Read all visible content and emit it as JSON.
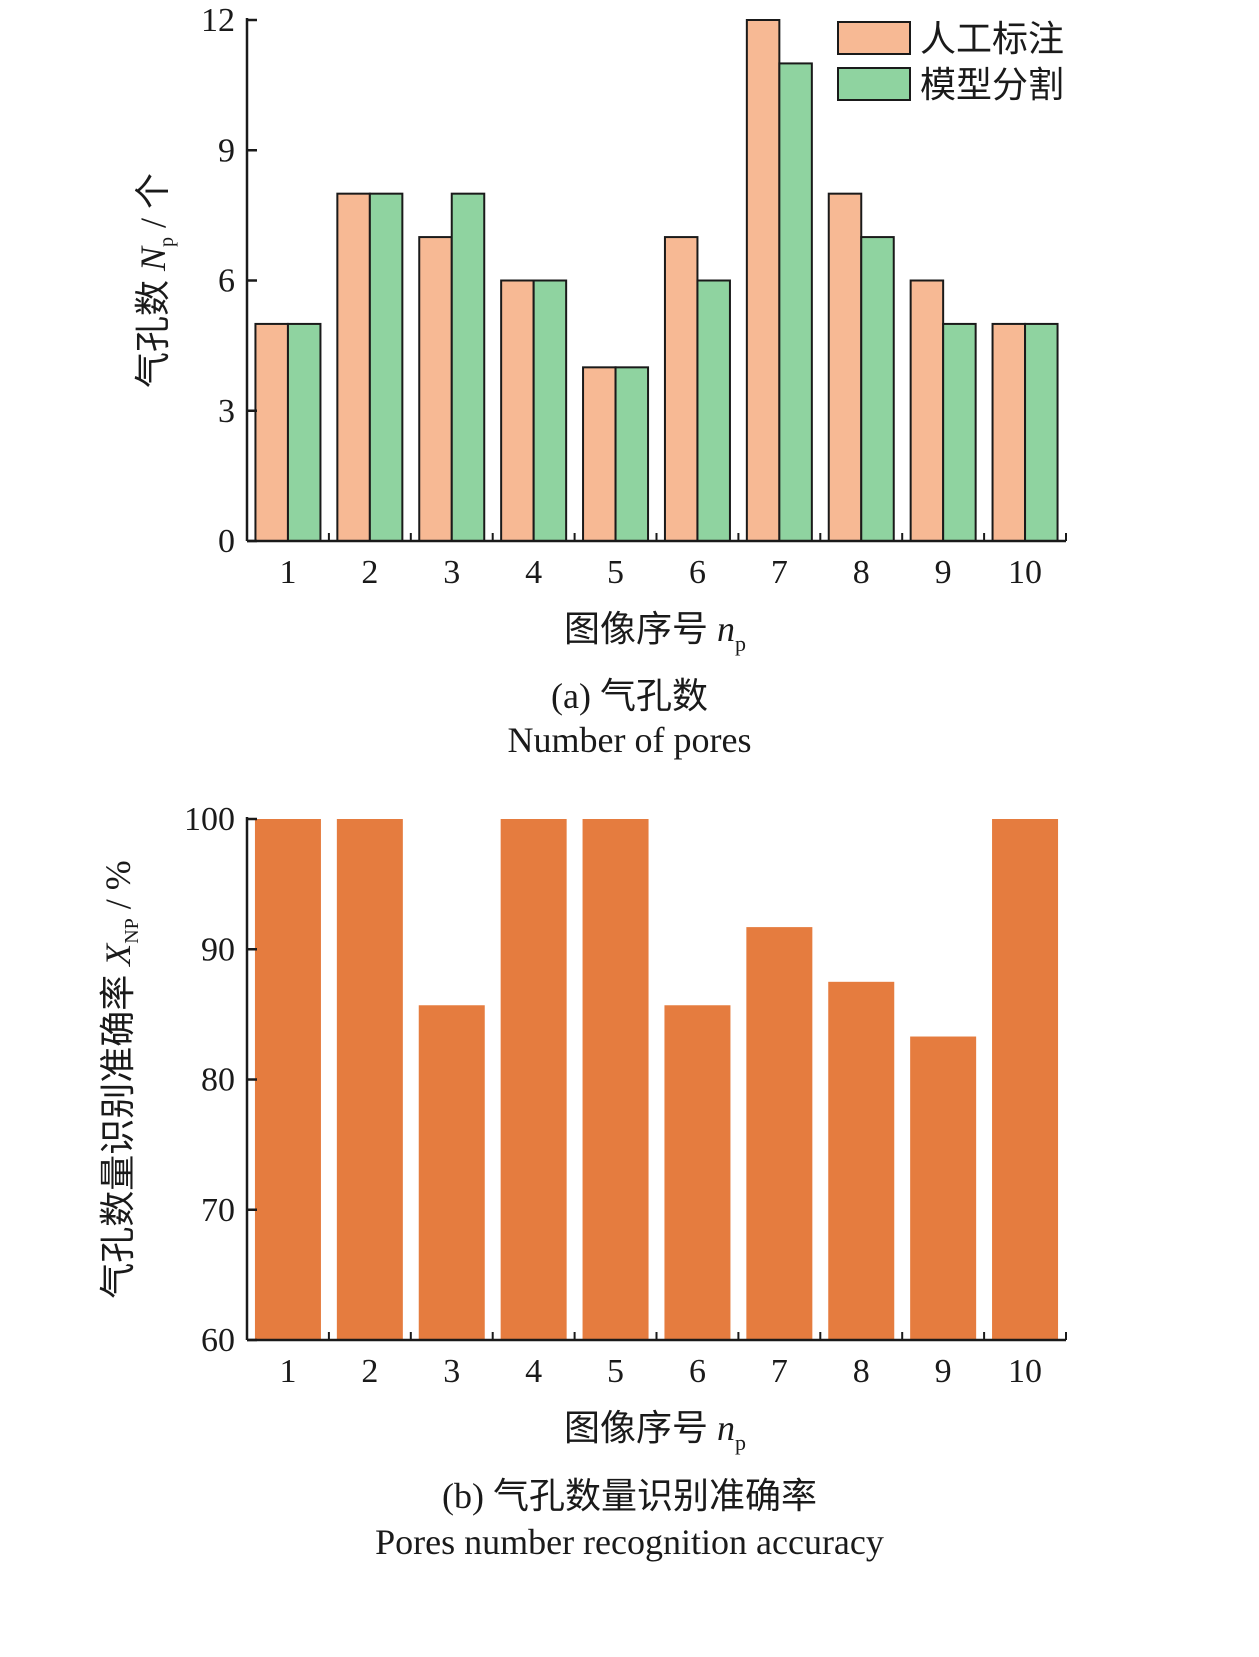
{
  "chart_data": [
    {
      "type": "bar",
      "panel": "a",
      "caption_cn": "(a) 气孔数",
      "caption_en": "Number of pores",
      "xlabel": "图像序号",
      "xlabel_var": "n",
      "xlabel_sub": "p",
      "ylabel": "气孔数",
      "ylabel_var": "N",
      "ylabel_sub": "p",
      "ylabel_unit": " / 个",
      "categories": [
        "1",
        "2",
        "3",
        "4",
        "5",
        "6",
        "7",
        "8",
        "9",
        "10"
      ],
      "ylim": [
        0,
        12
      ],
      "yticks": [
        "0",
        "3",
        "6",
        "9",
        "12"
      ],
      "legend_position": "top-right",
      "series": [
        {
          "name": "人工标注",
          "color": "#F7B994",
          "values": [
            5,
            8,
            7,
            6,
            4,
            7,
            12,
            8,
            6,
            5
          ]
        },
        {
          "name": "模型分割",
          "color": "#8FD3A0",
          "values": [
            5,
            8,
            8,
            6,
            4,
            6,
            11,
            7,
            5,
            5
          ]
        }
      ]
    },
    {
      "type": "bar",
      "panel": "b",
      "caption_cn": "(b) 气孔数量识别准确率",
      "caption_en": "Pores number recognition accuracy",
      "xlabel": "图像序号",
      "xlabel_var": "n",
      "xlabel_sub": "p",
      "ylabel": "气孔数量识别准确率",
      "ylabel_var": "X",
      "ylabel_sub": "NP",
      "ylabel_unit": " / %",
      "categories": [
        "1",
        "2",
        "3",
        "4",
        "5",
        "6",
        "7",
        "8",
        "9",
        "10"
      ],
      "ylim": [
        60,
        100
      ],
      "yticks": [
        "60",
        "70",
        "80",
        "90",
        "100"
      ],
      "series": [
        {
          "color": "#E57C3F",
          "values": [
            100,
            100,
            85.7,
            100,
            100,
            85.7,
            91.7,
            87.5,
            83.3,
            100
          ]
        }
      ]
    }
  ]
}
